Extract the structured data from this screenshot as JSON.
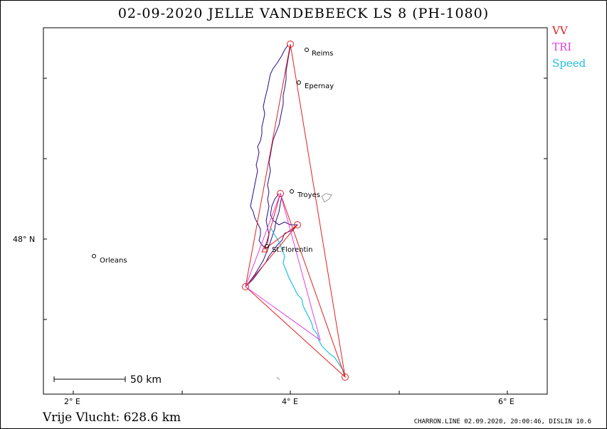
{
  "title": "02-09-2020   JELLE VANDEBEECK   LS 8 (PH-1080)",
  "legend": [
    {
      "label": "VV",
      "color": "#e02020"
    },
    {
      "label": "TRI",
      "color": "#e040e0"
    },
    {
      "label": "Speed",
      "color": "#20c0e0"
    }
  ],
  "axes": {
    "x_ticks": [
      "2° E",
      "4° E",
      "6° E"
    ],
    "y_ticks": [
      "48° N"
    ]
  },
  "scale_bar": "50  km",
  "places": [
    {
      "name": "Reims",
      "lon": 4.15,
      "lat": 49.28
    },
    {
      "name": "Epernay",
      "lon": 4.08,
      "lat": 49.08
    },
    {
      "name": "Troyes",
      "lon": 4.03,
      "lat": 48.3
    },
    {
      "name": "St.Florentin",
      "lon": 3.78,
      "lat": 47.98
    },
    {
      "name": "Orleans",
      "lon": 2.2,
      "lat": 47.93
    }
  ],
  "turnpoints": [
    {
      "lon": 4.0,
      "lat": 49.33
    },
    {
      "lon": 4.52,
      "lat": 47.13
    },
    {
      "lon": 3.6,
      "lat": 47.74
    },
    {
      "lon": 4.07,
      "lat": 48.18
    },
    {
      "lon": 3.9,
      "lat": 48.31
    },
    {
      "lon": 3.78,
      "lat": 48.0
    }
  ],
  "footer": {
    "distance_label": "Vrije Vlucht:  628.6 km",
    "software": "CHARRON.LINE 02.09.2020, 20:00:46, DISLIN 10.6"
  }
}
